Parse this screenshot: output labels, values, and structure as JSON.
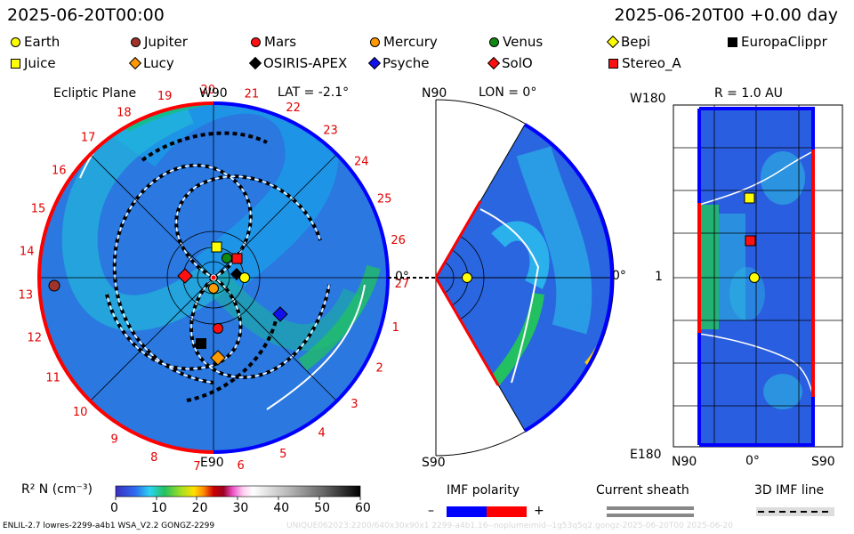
{
  "header": {
    "left_time": "2025-06-20T00:00",
    "right_time": "2025-06-20T00 +0.00 day"
  },
  "legend": [
    {
      "name": "Earth",
      "shape": "circle",
      "color": "#ffff00"
    },
    {
      "name": "Jupiter",
      "shape": "circle",
      "color": "#a0332a"
    },
    {
      "name": "Mars",
      "shape": "circle",
      "color": "#ff1010"
    },
    {
      "name": "Mercury",
      "shape": "circle",
      "color": "#ff9900"
    },
    {
      "name": "Venus",
      "shape": "circle",
      "color": "#118811"
    },
    {
      "name": "Bepi",
      "shape": "diamond",
      "color": "#ffff00"
    },
    {
      "name": "EuropaClippr",
      "shape": "square",
      "color": "#000000"
    },
    {
      "name": "Juice",
      "shape": "square",
      "color": "#ffff00"
    },
    {
      "name": "Lucy",
      "shape": "diamond",
      "color": "#ff9900"
    },
    {
      "name": "OSIRIS-APEX",
      "shape": "diamond",
      "color": "#000000"
    },
    {
      "name": "Psyche",
      "shape": "diamond",
      "color": "#1010ee"
    },
    {
      "name": "SolO",
      "shape": "diamond",
      "color": "#ff1010"
    },
    {
      "name": "Stereo_A",
      "shape": "square",
      "color": "#ff1010"
    }
  ],
  "ecliptic": {
    "title": "Ecliptic Plane",
    "top_label": "W90",
    "lat_label": "LAT = -2.1°",
    "bottom_label": "E90",
    "side_label": "0°",
    "rotation_numbers": [
      "19",
      "20",
      "21",
      "22",
      "23",
      "24",
      "25",
      "26",
      "27",
      "1",
      "2",
      "3",
      "4",
      "5",
      "6",
      "7",
      "8",
      "9",
      "10",
      "11",
      "12",
      "13",
      "14",
      "15",
      "16",
      "17",
      "18"
    ]
  },
  "meridional": {
    "top_label": "N90",
    "lon_label": "LON = 0°",
    "bottom_label": "S90",
    "right_label": "0°"
  },
  "radial": {
    "top_left": "W180",
    "title": "R = 1.0 AU",
    "mid_left": "1",
    "bottom_left": "E180",
    "x_labels": [
      "N90",
      "0°",
      "S90"
    ]
  },
  "colorbar": {
    "label": "R² N (cm⁻³)",
    "ticks": [
      "0",
      "10",
      "20",
      "30",
      "40",
      "50",
      "60"
    ]
  },
  "imf": {
    "title": "IMF polarity",
    "minus": "–",
    "plus": "+",
    "neg_color": "#0000ff",
    "pos_color": "#ff0000"
  },
  "sheath": {
    "title": "Current sheath"
  },
  "imf3d": {
    "title": "3D IMF line"
  },
  "footer": {
    "left": "ENLIL-2.7 lowres-2299-a4b1 WSA_V2.2 GONGZ-2299",
    "right_faint": "UNIQUE062023:2200/640x30x90x1 2299-a4b1.16--noplumeimid--1g53q5q2.gongz-2025-06-20T00   2025-06-20"
  }
}
